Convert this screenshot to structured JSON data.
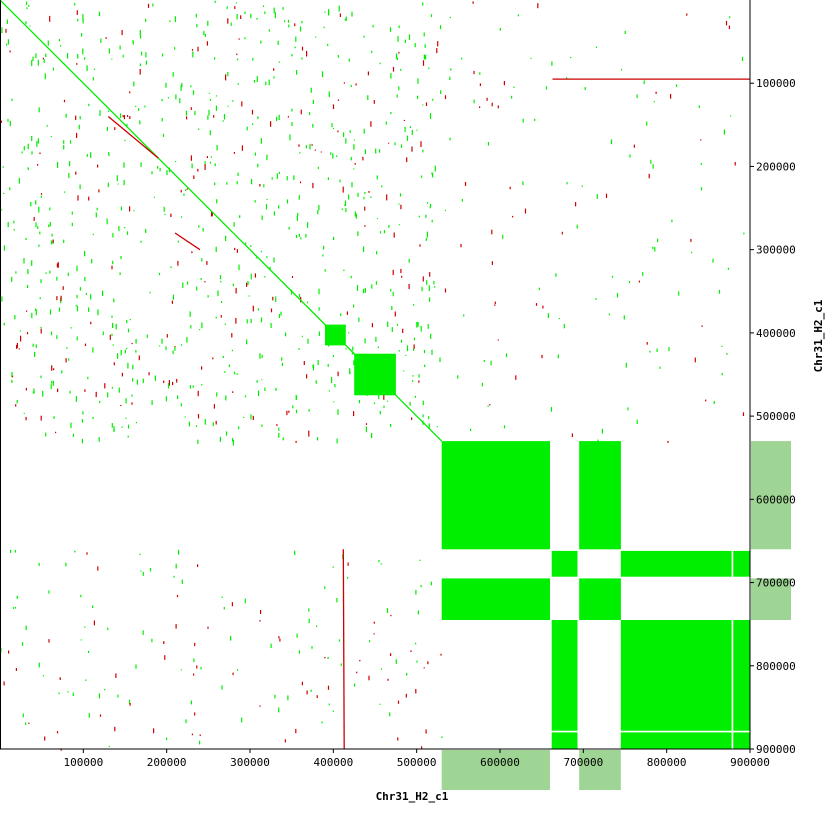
{
  "chart_data": {
    "type": "scatter",
    "subtype": "dot-plot",
    "xlabel": "Chr31_H2_c1",
    "ylabel": "Chr31_H2_c1",
    "xlim": [
      0,
      900000
    ],
    "ylim": [
      0,
      900000
    ],
    "y_inverted": true,
    "x_ticks": [
      100000,
      200000,
      300000,
      400000,
      500000,
      600000,
      700000,
      800000,
      900000
    ],
    "y_ticks": [
      100000,
      200000,
      300000,
      400000,
      500000,
      600000,
      700000,
      800000,
      900000
    ],
    "grid": false,
    "colors": {
      "forward": "#00ee00",
      "reverse": "#cc0000",
      "coverage": "#9ed494",
      "axis": "#000000",
      "background": "#ffffff"
    },
    "series": [
      {
        "strand": "forward",
        "segments": [
          {
            "x": [
              0,
              530000
            ],
            "y": [
              0,
              530000
            ]
          }
        ],
        "blocks": [
          {
            "x": [
              390000,
              415000
            ],
            "y": [
              390000,
              415000
            ]
          },
          {
            "x": [
              425000,
              475000
            ],
            "y": [
              425000,
              475000
            ]
          },
          {
            "x": [
              530000,
              660000
            ],
            "y": [
              530000,
              660000
            ]
          },
          {
            "x": [
              695000,
              745000
            ],
            "y": [
              530000,
              660000
            ]
          },
          {
            "x": [
              530000,
              660000
            ],
            "y": [
              695000,
              745000
            ]
          },
          {
            "x": [
              695000,
              745000
            ],
            "y": [
              695000,
              745000
            ]
          },
          {
            "x": [
              662000,
              693000
            ],
            "y": [
              662000,
              693000
            ]
          },
          {
            "x": [
              745000,
              878000
            ],
            "y": [
              662000,
              693000
            ]
          },
          {
            "x": [
              662000,
              693000
            ],
            "y": [
              745000,
              878000
            ]
          },
          {
            "x": [
              745000,
              878000
            ],
            "y": [
              745000,
              878000
            ]
          },
          {
            "x": [
              880000,
              900000
            ],
            "y": [
              662000,
              693000
            ]
          },
          {
            "x": [
              880000,
              900000
            ],
            "y": [
              745000,
              878000
            ]
          },
          {
            "x": [
              662000,
              693000
            ],
            "y": [
              880000,
              900000
            ]
          },
          {
            "x": [
              745000,
              878000
            ],
            "y": [
              880000,
              900000
            ]
          },
          {
            "x": [
              880000,
              900000
            ],
            "y": [
              880000,
              900000
            ]
          }
        ]
      },
      {
        "strand": "reverse",
        "segments": [
          {
            "x": [
              663000,
              900000
            ],
            "y": [
              95000,
              95000
            ]
          },
          {
            "x": [
              412000,
              413000
            ],
            "y": [
              660000,
              900000
            ]
          },
          {
            "x": [
              130000,
              190000
            ],
            "y": [
              140000,
              190000
            ]
          },
          {
            "x": [
              210000,
              240000
            ],
            "y": [
              280000,
              300000
            ]
          }
        ]
      }
    ],
    "coverage_bars": {
      "x_axis": [
        {
          "x": [
            530000,
            660000
          ]
        },
        {
          "x": [
            695000,
            745000
          ]
        }
      ],
      "y_axis": [
        {
          "y": [
            530000,
            660000
          ]
        },
        {
          "y": [
            695000,
            745000
          ]
        }
      ]
    }
  }
}
